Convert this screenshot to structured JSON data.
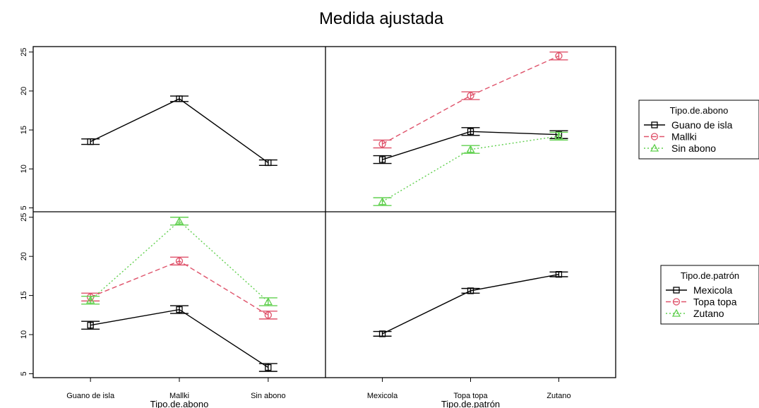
{
  "title": "Medida ajustada",
  "chart_data": {
    "type": "line",
    "title": "Medida ajustada",
    "y_ticks": [
      5,
      10,
      15,
      20,
      25
    ],
    "ylim": [
      4.5,
      25.7
    ],
    "panels": [
      {
        "id": "top-left",
        "x_factor": "Tipo.de.abono",
        "categories": [
          "Guano de isla",
          "Mallki",
          "Sin abono"
        ],
        "series": [
          {
            "values": [
              13.5,
              19.0,
              10.8
            ],
            "err": [
              0.35,
              0.35,
              0.35
            ],
            "color": "#000000",
            "marker": "square",
            "dash": ""
          }
        ]
      },
      {
        "id": "top-right",
        "x_factor": "Tipo.de.patrón",
        "categories": [
          "Mexicola",
          "Topa topa",
          "Zutano"
        ],
        "series": [
          {
            "name": "Guano de isla",
            "values": [
              11.2,
              14.8,
              14.4
            ],
            "err": [
              0.5,
              0.5,
              0.5
            ],
            "color": "#000000",
            "marker": "square",
            "dash": ""
          },
          {
            "name": "Mallki",
            "values": [
              13.2,
              19.4,
              24.5
            ],
            "err": [
              0.5,
              0.5,
              0.5
            ],
            "color": "#df536b",
            "marker": "circle",
            "dash": "7,4"
          },
          {
            "name": "Sin abono",
            "values": [
              5.8,
              12.5,
              14.2
            ],
            "err": [
              0.5,
              0.5,
              0.5
            ],
            "color": "#61d04f",
            "marker": "triangle",
            "dash": "2,3"
          }
        ]
      },
      {
        "id": "bottom-left",
        "x_factor": "Tipo.de.abono",
        "categories": [
          "Guano de isla",
          "Mallki",
          "Sin abono"
        ],
        "series": [
          {
            "name": "Mexicola",
            "values": [
              11.2,
              13.2,
              5.8
            ],
            "err": [
              0.5,
              0.5,
              0.5
            ],
            "color": "#000000",
            "marker": "square",
            "dash": ""
          },
          {
            "name": "Topa topa",
            "values": [
              14.8,
              19.4,
              12.5
            ],
            "err": [
              0.5,
              0.5,
              0.5
            ],
            "color": "#df536b",
            "marker": "circle",
            "dash": "7,4"
          },
          {
            "name": "Zutano",
            "values": [
              14.4,
              24.5,
              14.2
            ],
            "err": [
              0.5,
              0.5,
              0.5
            ],
            "color": "#61d04f",
            "marker": "triangle",
            "dash": "2,3"
          }
        ]
      },
      {
        "id": "bottom-right",
        "x_factor": "Tipo.de.patrón",
        "categories": [
          "Mexicola",
          "Topa topa",
          "Zutano"
        ],
        "series": [
          {
            "values": [
              10.1,
              15.6,
              17.7
            ],
            "err": [
              0.3,
              0.3,
              0.3
            ],
            "color": "#000000",
            "marker": "square",
            "dash": ""
          }
        ]
      }
    ],
    "x_axis_titles": [
      "Tipo.de.abono",
      "Tipo.de.patrón"
    ],
    "legends": [
      {
        "title": "Tipo.de.abono",
        "entries": [
          {
            "label": "Guano de isla",
            "color": "#000000",
            "marker": "square",
            "dash": ""
          },
          {
            "label": "Mallki",
            "color": "#df536b",
            "marker": "circle",
            "dash": "7,4"
          },
          {
            "label": "Sin abono",
            "color": "#61d04f",
            "marker": "triangle",
            "dash": "2,3"
          }
        ]
      },
      {
        "title": "Tipo.de.patrón",
        "entries": [
          {
            "label": "Mexicola",
            "color": "#000000",
            "marker": "square",
            "dash": ""
          },
          {
            "label": "Topa topa",
            "color": "#df536b",
            "marker": "circle",
            "dash": "7,4"
          },
          {
            "label": "Zutano",
            "color": "#61d04f",
            "marker": "triangle",
            "dash": "2,3"
          }
        ]
      }
    ]
  }
}
